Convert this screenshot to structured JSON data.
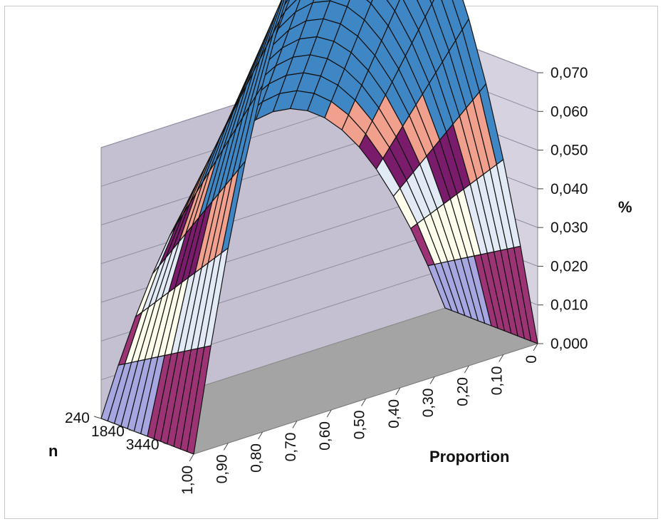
{
  "chart_data": {
    "type": "surface",
    "title": "",
    "x_axis": {
      "label": "Proportion",
      "ticks": [
        "0",
        "0,10",
        "0,20",
        "0,30",
        "0,40",
        "0,50",
        "0,60",
        "0,70",
        "0,80",
        "0,90",
        "1,00"
      ]
    },
    "y_axis": {
      "label": "n",
      "ticks": [
        "240",
        "1840",
        "3440"
      ]
    },
    "z_axis": {
      "label": "%",
      "ticks": [
        "0,000",
        "0,010",
        "0,020",
        "0,030",
        "0,040",
        "0,050",
        "0,060",
        "0,070"
      ],
      "range": [
        0,
        0.07
      ]
    },
    "peak_value_at_n_240": 0.065,
    "value_at_n_max_p_0_5": 0.035,
    "bands": [
      {
        "range": "0,000-0,010",
        "color": "#a6a6e0"
      },
      {
        "range": "0,010-0,020",
        "color": "#9c3375"
      },
      {
        "range": "0,020-0,030",
        "color": "#fffdec"
      },
      {
        "range": "0,030-0,040",
        "color": "#e2ebf5"
      },
      {
        "range": "0,040-0,050",
        "color": "#7a1c6b"
      },
      {
        "range": "0,050-0,060",
        "color": "#f0a08c"
      },
      {
        "range": "0,060-0,070",
        "color": "#3f86c4"
      }
    ],
    "colors": {
      "back_wall": "#c4c0d2",
      "floor": "#a4a4a4",
      "grid_line": "#111111"
    }
  }
}
